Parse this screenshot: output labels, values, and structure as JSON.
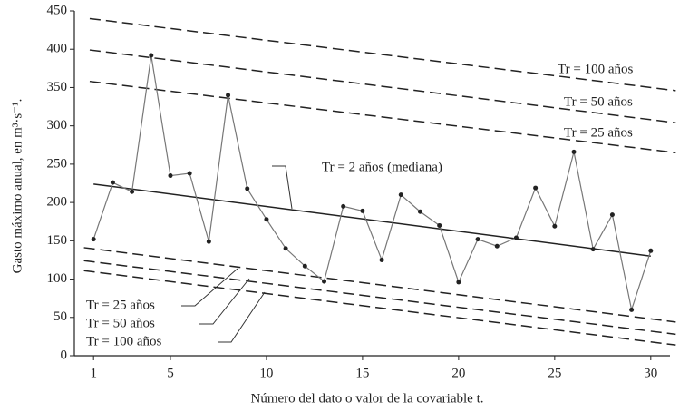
{
  "chart_data": {
    "type": "line",
    "y_label": "Gasto máximo anual, en m³·s⁻¹.",
    "x_label": "Número del dato o valor de la covariable t.",
    "x": [
      1,
      2,
      3,
      4,
      5,
      6,
      7,
      8,
      9,
      10,
      11,
      12,
      13,
      14,
      15,
      16,
      17,
      18,
      19,
      20,
      21,
      22,
      23,
      24,
      25,
      26,
      27,
      28,
      29,
      30
    ],
    "series": [
      {
        "color": "#777777",
        "values": [
          152,
          226,
          214,
          392,
          235,
          238,
          149,
          340,
          218,
          178,
          140,
          117,
          97,
          195,
          189,
          125,
          210,
          188,
          170,
          96,
          152,
          143,
          154,
          219,
          169,
          266,
          139,
          184,
          60,
          137
        ]
      }
    ],
    "reference_lines": [
      {
        "label": "Tr = 2 años (mediana)",
        "x": [
          1,
          30
        ],
        "values": [
          224,
          130
        ],
        "style": "solid"
      },
      {
        "label": "Tr = 100 años",
        "x": [
          0.8,
          31.3
        ],
        "values": [
          440,
          346
        ],
        "style": "dashed"
      },
      {
        "label": "Tr = 50 años",
        "x": [
          0.8,
          31.3
        ],
        "values": [
          399,
          304
        ],
        "style": "dashed"
      },
      {
        "label": "Tr = 25 años",
        "x": [
          0.8,
          31.3
        ],
        "values": [
          358,
          265
        ],
        "style": "dashed"
      },
      {
        "label": "Tr = 25 años",
        "x": [
          0.5,
          31.3
        ],
        "values": [
          141,
          44
        ],
        "style": "dashed"
      },
      {
        "label": "Tr = 50 años",
        "x": [
          0.5,
          31.3
        ],
        "values": [
          124,
          28
        ],
        "style": "dashed"
      },
      {
        "label": "Tr = 100 años",
        "x": [
          0.5,
          31.3
        ],
        "values": [
          111,
          14
        ],
        "style": "dashed"
      }
    ],
    "xlim": [
      0,
      31
    ],
    "ylim": [
      0,
      450
    ],
    "xticks": [
      1,
      5,
      10,
      15,
      20,
      25,
      30
    ],
    "yticks": [
      0,
      50,
      100,
      150,
      200,
      250,
      300,
      350,
      400,
      450
    ],
    "grid": false
  }
}
